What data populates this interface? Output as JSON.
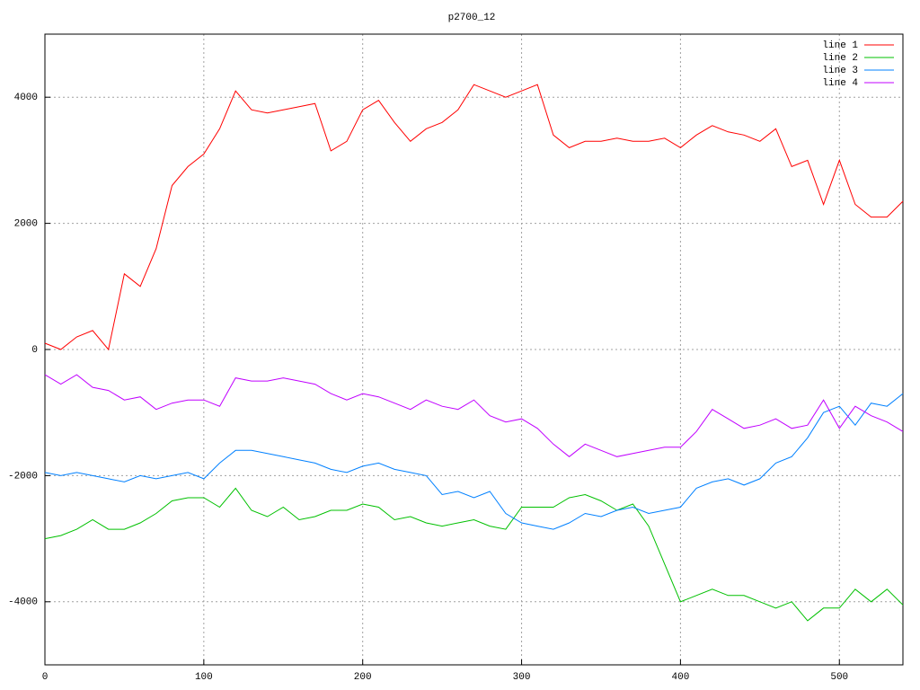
{
  "chart_data": {
    "type": "line",
    "title": "p2700_12",
    "x": [
      0,
      10,
      20,
      30,
      40,
      50,
      60,
      70,
      80,
      90,
      100,
      110,
      120,
      130,
      140,
      150,
      160,
      170,
      180,
      190,
      200,
      210,
      220,
      230,
      240,
      250,
      260,
      270,
      280,
      290,
      300,
      310,
      320,
      330,
      340,
      350,
      360,
      370,
      380,
      390,
      400,
      410,
      420,
      430,
      440,
      450,
      460,
      470,
      480,
      490,
      500,
      510,
      520,
      530,
      540
    ],
    "series": [
      {
        "name": "line 1",
        "color": "#ff0000",
        "values": [
          100,
          0,
          200,
          300,
          0,
          1200,
          1000,
          1600,
          2600,
          2900,
          3100,
          3500,
          4100,
          3800,
          3750,
          3800,
          3850,
          3900,
          3150,
          3300,
          3800,
          3950,
          3600,
          3300,
          3500,
          3600,
          3800,
          4200,
          4100,
          4000,
          4100,
          4200,
          3400,
          3200,
          3300,
          3300,
          3350,
          3300,
          3300,
          3350,
          3200,
          3400,
          3550,
          3450,
          3400,
          3300,
          3500,
          2900,
          3000,
          2300,
          3000,
          2300,
          2100,
          2100,
          2350
        ]
      },
      {
        "name": "line 2",
        "color": "#00c000",
        "values": [
          -3000,
          -2950,
          -2850,
          -2700,
          -2850,
          -2850,
          -2750,
          -2600,
          -2400,
          -2350,
          -2350,
          -2500,
          -2200,
          -2550,
          -2650,
          -2500,
          -2700,
          -2650,
          -2550,
          -2550,
          -2450,
          -2500,
          -2700,
          -2650,
          -2750,
          -2800,
          -2750,
          -2700,
          -2800,
          -2850,
          -2500,
          -2500,
          -2500,
          -2350,
          -2300,
          -2400,
          -2550,
          -2450,
          -2800,
          -3400,
          -4000,
          -3900,
          -3800,
          -3900,
          -3900,
          -4000,
          -4100,
          -4000,
          -4300,
          -4100,
          -4100,
          -3800,
          -4000,
          -3800,
          -4050
        ]
      },
      {
        "name": "line 3",
        "color": "#0080ff",
        "values": [
          -1950,
          -2000,
          -1950,
          -2000,
          -2050,
          -2100,
          -2000,
          -2050,
          -2000,
          -1950,
          -2050,
          -1800,
          -1600,
          -1600,
          -1650,
          -1700,
          -1750,
          -1800,
          -1900,
          -1950,
          -1850,
          -1800,
          -1900,
          -1950,
          -2000,
          -2300,
          -2250,
          -2350,
          -2250,
          -2600,
          -2750,
          -2800,
          -2850,
          -2750,
          -2600,
          -2650,
          -2550,
          -2500,
          -2600,
          -2550,
          -2500,
          -2200,
          -2100,
          -2050,
          -2150,
          -2050,
          -1800,
          -1700,
          -1400,
          -1000,
          -900,
          -1200,
          -850,
          -900,
          -700
        ]
      },
      {
        "name": "line 4",
        "color": "#c000ff",
        "values": [
          -400,
          -550,
          -400,
          -600,
          -650,
          -800,
          -750,
          -950,
          -850,
          -800,
          -800,
          -900,
          -450,
          -500,
          -500,
          -450,
          -500,
          -550,
          -700,
          -800,
          -700,
          -750,
          -850,
          -950,
          -800,
          -900,
          -950,
          -800,
          -1050,
          -1150,
          -1100,
          -1250,
          -1500,
          -1700,
          -1500,
          -1600,
          -1700,
          -1650,
          -1600,
          -1550,
          -1550,
          -1300,
          -950,
          -1100,
          -1250,
          -1200,
          -1100,
          -1250,
          -1200,
          -800,
          -1250,
          -900,
          -1050,
          -1150,
          -1300
        ]
      }
    ],
    "xlim": [
      0,
      540
    ],
    "xticks": [
      0,
      100,
      200,
      300,
      400,
      500
    ],
    "ylim": [
      -5000,
      5000
    ],
    "yticks": [
      -4000,
      -2000,
      0,
      2000,
      4000
    ],
    "grid": true,
    "legend": "top-right"
  }
}
